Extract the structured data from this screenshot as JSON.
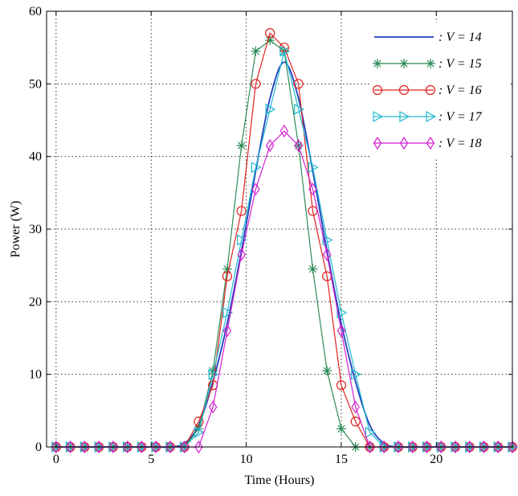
{
  "chart_data": {
    "type": "line",
    "xlabel": "Time (Hours)",
    "ylabel": "Power (W)",
    "xlim": [
      -0.5,
      24
    ],
    "ylim": [
      0,
      60
    ],
    "xticks": [
      0,
      5,
      10,
      15,
      20
    ],
    "yticks": [
      0,
      10,
      20,
      30,
      40,
      50,
      60
    ],
    "grid": true,
    "legend_position": "top-right",
    "x": [
      0,
      0.75,
      1.5,
      2.25,
      3,
      3.75,
      4.5,
      5.25,
      6,
      6.75,
      7.5,
      8.25,
      9,
      9.75,
      10.5,
      11.25,
      12,
      12.75,
      13.5,
      14.25,
      15,
      15.75,
      16.5,
      17.25,
      18,
      18.75,
      19.5,
      20.25,
      21,
      21.75,
      22.5,
      23.25,
      24
    ],
    "series": [
      {
        "name": ": V = 14",
        "color": "#1f3fbf",
        "marker": "none",
        "values": [
          0,
          0,
          0,
          0,
          0,
          0,
          0,
          0,
          0,
          0.5,
          3,
          9,
          17,
          27,
          38,
          48,
          53,
          48,
          38,
          27,
          17,
          9,
          3,
          0.5,
          0,
          0,
          0,
          0,
          0,
          0,
          0,
          0,
          0
        ]
      },
      {
        "name": ": V = 15",
        "color": "#2e8b57",
        "marker": "star",
        "values": [
          0,
          0,
          0,
          0,
          0,
          0,
          0,
          0,
          0,
          0,
          2.5,
          10.5,
          24.5,
          41.5,
          54.5,
          56,
          54.5,
          41.5,
          24.5,
          10.5,
          2.5,
          0,
          0,
          0,
          0,
          0,
          0,
          0,
          0,
          0,
          0,
          0,
          0
        ]
      },
      {
        "name": ": V = 16",
        "color": "#e02020",
        "marker": "circle",
        "values": [
          0,
          0,
          0,
          0,
          0,
          0,
          0,
          0,
          0,
          0,
          3.5,
          8.5,
          23.5,
          32.5,
          50,
          57,
          55,
          50,
          32.5,
          23.5,
          8.5,
          3.5,
          0,
          0,
          0,
          0,
          0,
          0,
          0,
          0,
          0,
          0,
          0
        ]
      },
      {
        "name": ": V = 17",
        "color": "#20b8d0",
        "marker": "triangle-right",
        "values": [
          0,
          0,
          0,
          0,
          0,
          0,
          0,
          0,
          0,
          0,
          2,
          10,
          18.5,
          28.5,
          38.5,
          46.5,
          54.5,
          46.5,
          38.5,
          28.5,
          18.5,
          10,
          2,
          0,
          0,
          0,
          0,
          0,
          0,
          0,
          0,
          0,
          0
        ]
      },
      {
        "name": ": V = 18",
        "color": "#d020d0",
        "marker": "diamond",
        "values": [
          0,
          0,
          0,
          0,
          0,
          0,
          0,
          0,
          0,
          0,
          0,
          5.5,
          16,
          26.5,
          35.5,
          41.5,
          43.5,
          41.5,
          35.5,
          26.5,
          16,
          5.5,
          0,
          0,
          0,
          0,
          0,
          0,
          0,
          0,
          0,
          0,
          0
        ]
      }
    ]
  }
}
